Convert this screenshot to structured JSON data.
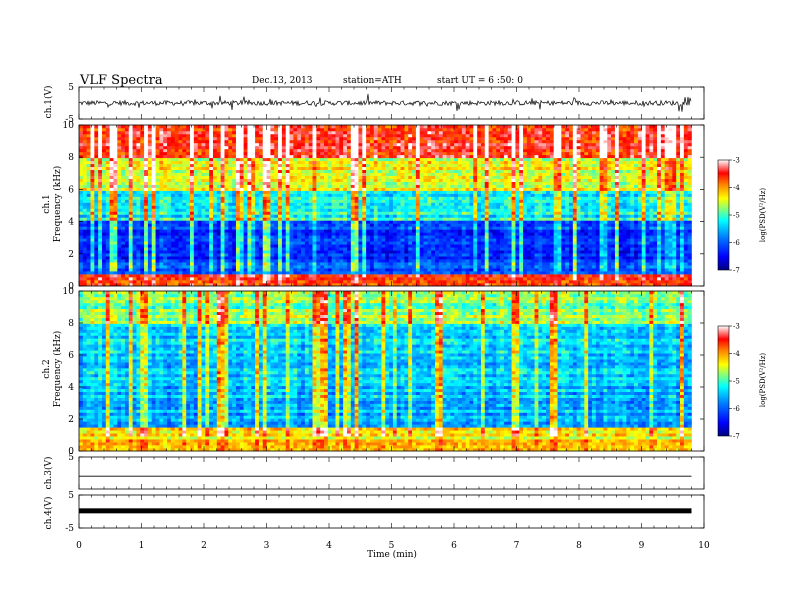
{
  "header": {
    "title": "VLF  Spectra",
    "date": "Dec.13, 2013",
    "station": "station=ATH",
    "start": "start  UT  =   6  :50: 0"
  },
  "chart_data": [
    {
      "type": "line",
      "panel": "ch1-waveform",
      "ylabel": "ch.1(V)",
      "ylim": [
        -5,
        5
      ],
      "yticks": [
        "5",
        "-5"
      ],
      "xlim": [
        0,
        10
      ],
      "x_extent_min": 9.8,
      "approx_baseline_V": 0.0,
      "approx_amplitude_V": 1.5
    },
    {
      "type": "heatmap",
      "panel": "ch1-spectrogram",
      "ylabel": "ch.1",
      "ylabel2": "Frequency  (kHz)",
      "ylim": [
        0,
        10
      ],
      "yticks": [
        "0",
        "2",
        "4",
        "6",
        "8",
        "10"
      ],
      "xlim": [
        0,
        10
      ],
      "x_extent_min": 9.8,
      "colorbar": {
        "label": "log(PSD(V²/Hz)",
        "range": [
          -7,
          -3
        ],
        "ticks": [
          "-3",
          "-4",
          "-5",
          "-6",
          "-7"
        ]
      },
      "approx_band_levels": [
        {
          "freq_kHz": [
            0,
            0.8
          ],
          "level": -3.5
        },
        {
          "freq_kHz": [
            0.8,
            4
          ],
          "level": -6.2
        },
        {
          "freq_kHz": [
            4,
            6
          ],
          "level": -5.2
        },
        {
          "freq_kHz": [
            6,
            8
          ],
          "level": -4.4
        },
        {
          "freq_kHz": [
            8,
            10
          ],
          "level": -3.6
        }
      ]
    },
    {
      "type": "heatmap",
      "panel": "ch2-spectrogram",
      "ylabel": "ch.2",
      "ylabel2": "Frequency  (kHz)",
      "ylim": [
        0,
        10
      ],
      "yticks": [
        "0",
        "2",
        "4",
        "6",
        "8",
        "10"
      ],
      "xlim": [
        0,
        10
      ],
      "x_extent_min": 9.8,
      "colorbar": {
        "label": "log(PSD(V²/Hz)",
        "range": [
          -7,
          -3
        ],
        "ticks": [
          "-3",
          "-4",
          "-5",
          "-6",
          "-7"
        ]
      },
      "approx_band_levels": [
        {
          "freq_kHz": [
            0,
            1.5
          ],
          "level": -4.3
        },
        {
          "freq_kHz": [
            1.5,
            4
          ],
          "level": -5.6
        },
        {
          "freq_kHz": [
            4,
            8
          ],
          "level": -5.4
        },
        {
          "freq_kHz": [
            8,
            10
          ],
          "level": -4.8
        }
      ]
    },
    {
      "type": "line",
      "panel": "ch3-waveform",
      "ylabel": "ch.3(V)",
      "ylim": [
        -5,
        5
      ],
      "yticks": [
        "5"
      ],
      "xlim": [
        0,
        10
      ],
      "x_extent_min": 9.8,
      "approx_baseline_V": -1.0
    },
    {
      "type": "line",
      "panel": "ch4-waveform",
      "ylabel": "ch.4(V)",
      "ylim": [
        -5,
        5
      ],
      "yticks": [
        "5",
        "-5"
      ],
      "xlim": [
        0,
        10
      ],
      "x_extent_min": 9.8,
      "approx_baseline_V": 0.2
    }
  ],
  "x_axis": {
    "xlabel": "Time  (min)",
    "xlim": [
      0,
      10
    ],
    "ticks": [
      "0",
      "1",
      "2",
      "3",
      "4",
      "5",
      "6",
      "7",
      "8",
      "9",
      "10"
    ]
  },
  "colors": {
    "jet_stops": [
      "#00007f",
      "#0000ff",
      "#007fff",
      "#00ffff",
      "#7fff7f",
      "#ffff00",
      "#ff7f00",
      "#ff0000",
      "#ffffff"
    ]
  }
}
